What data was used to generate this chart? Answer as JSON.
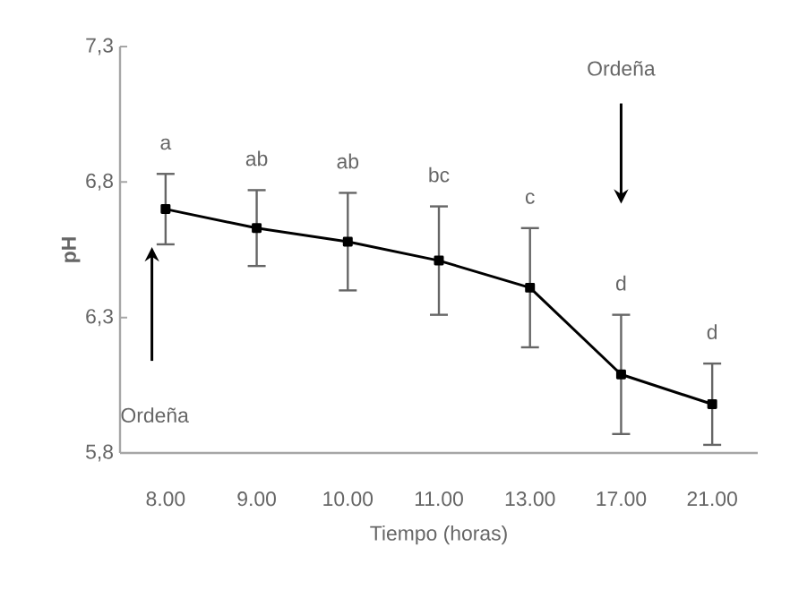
{
  "chart_data": {
    "type": "line",
    "xlabel": "Tiempo (horas)",
    "ylabel": "pH",
    "categories": [
      "8.00",
      "9.00",
      "10.00",
      "11.00",
      "13.00",
      "17.00",
      "21.00"
    ],
    "values": [
      6.7,
      6.63,
      6.58,
      6.51,
      6.41,
      6.09,
      5.98
    ],
    "errors": [
      0.13,
      0.14,
      0.18,
      0.2,
      0.22,
      0.22,
      0.15
    ],
    "color": "#000000",
    "marker": "square",
    "line_style": "solid",
    "ylim": [
      5.8,
      7.3
    ],
    "yticks": [
      {
        "value": 5.8,
        "label": "5,8"
      },
      {
        "value": 6.3,
        "label": "6,3"
      },
      {
        "value": 6.8,
        "label": "6,8"
      },
      {
        "value": 7.3,
        "label": "7,3"
      }
    ],
    "annotations": [
      "a",
      "ab",
      "ab",
      "bc",
      "c",
      "d",
      "d",
      "Ordeña",
      "Ordeña"
    ],
    "grid": false
  }
}
